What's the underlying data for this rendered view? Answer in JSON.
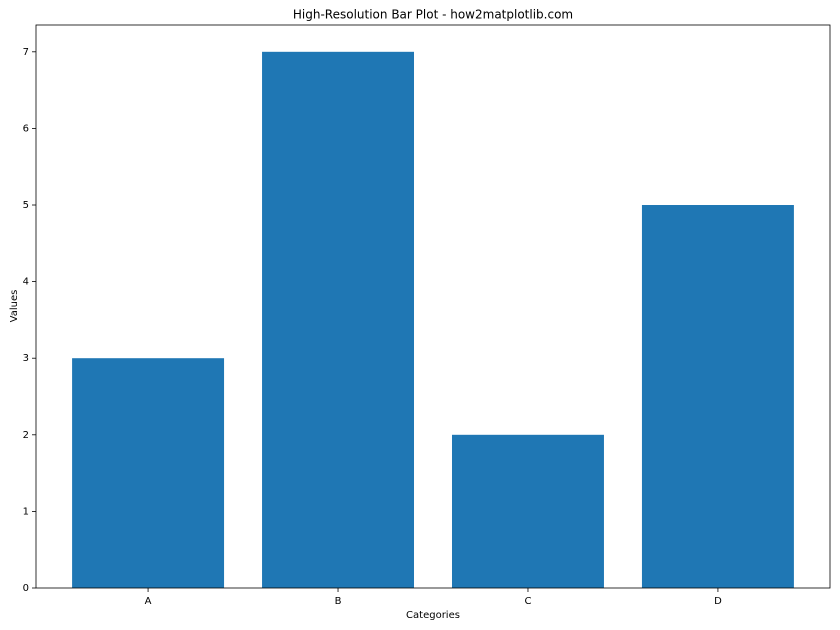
{
  "chart_data": {
    "type": "bar",
    "title": "High-Resolution Bar Plot - how2matplotlib.com",
    "x_label": "Categories",
    "y_label": "Values",
    "categories": [
      "A",
      "B",
      "C",
      "D"
    ],
    "values": [
      3,
      7,
      2,
      5
    ],
    "color": "#1f77b4",
    "ylim": [
      0,
      7.35
    ],
    "yticks": [
      0,
      1,
      2,
      3,
      4,
      5,
      6,
      7
    ],
    "grid": false
  }
}
